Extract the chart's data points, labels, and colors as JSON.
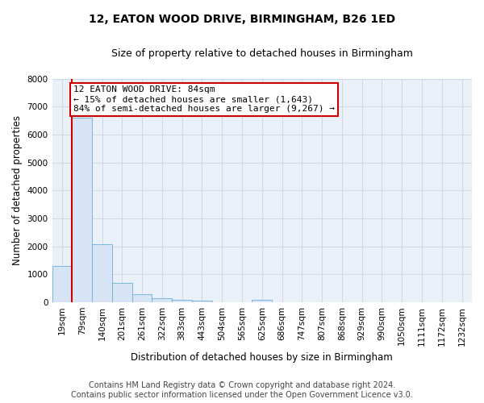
{
  "title": "12, EATON WOOD DRIVE, BIRMINGHAM, B26 1ED",
  "subtitle": "Size of property relative to detached houses in Birmingham",
  "xlabel": "Distribution of detached houses by size in Birmingham",
  "ylabel": "Number of detached properties",
  "bin_labels": [
    "19sqm",
    "79sqm",
    "140sqm",
    "201sqm",
    "261sqm",
    "322sqm",
    "383sqm",
    "443sqm",
    "504sqm",
    "565sqm",
    "625sqm",
    "686sqm",
    "747sqm",
    "807sqm",
    "868sqm",
    "929sqm",
    "990sqm",
    "1050sqm",
    "1111sqm",
    "1172sqm",
    "1232sqm"
  ],
  "bar_values": [
    1300,
    6600,
    2080,
    680,
    290,
    140,
    80,
    60,
    0,
    0,
    80,
    0,
    0,
    0,
    0,
    0,
    0,
    0,
    0,
    0,
    0
  ],
  "bar_color": "#d6e4f5",
  "bar_edge_color": "#6baed6",
  "highlight_line_color": "#cc0000",
  "annotation_text": "12 EATON WOOD DRIVE: 84sqm\n← 15% of detached houses are smaller (1,643)\n84% of semi-detached houses are larger (9,267) →",
  "annotation_box_color": "#cc0000",
  "ylim": [
    0,
    8000
  ],
  "yticks": [
    0,
    1000,
    2000,
    3000,
    4000,
    5000,
    6000,
    7000,
    8000
  ],
  "plot_bg_color": "#eaf0f8",
  "background_color": "#ffffff",
  "grid_color": "#c8d4e0",
  "footer_line1": "Contains HM Land Registry data © Crown copyright and database right 2024.",
  "footer_line2": "Contains public sector information licensed under the Open Government Licence v3.0.",
  "title_fontsize": 10,
  "subtitle_fontsize": 9,
  "axis_label_fontsize": 8.5,
  "tick_fontsize": 7.5,
  "annotation_fontsize": 8,
  "footer_fontsize": 7
}
